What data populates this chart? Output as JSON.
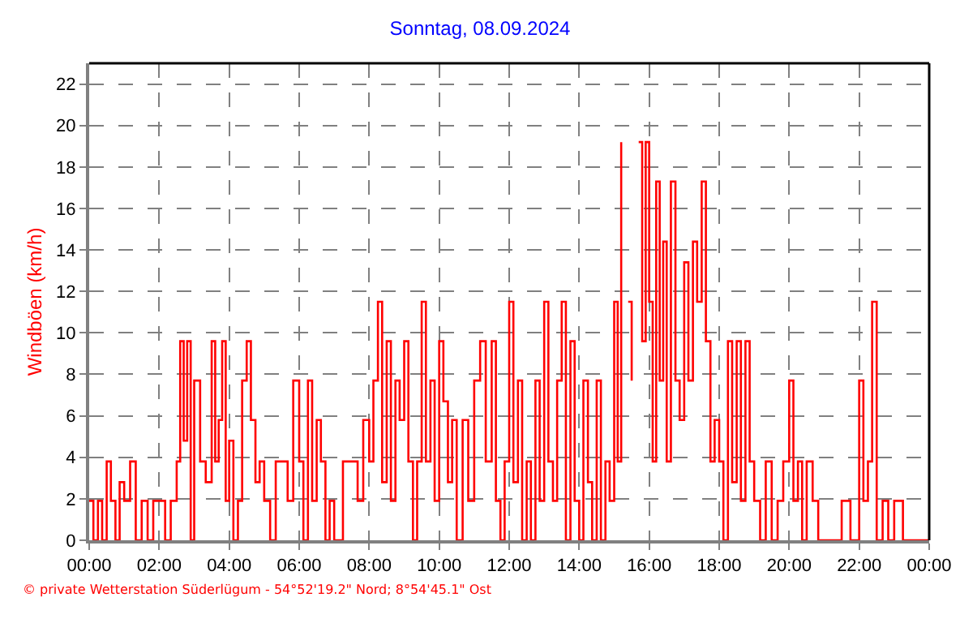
{
  "chart_data": {
    "type": "step",
    "title": "Sonntag, 08.09.2024",
    "ylabel": "Windböen (km/h)",
    "annotations": [
      "© private Wetterstation Süderlügum - 54°52'19.2\" Nord; 8°54'45.1\" Ost"
    ],
    "x": [
      0,
      0.12,
      0.25,
      0.37,
      0.5,
      0.62,
      0.75,
      0.87,
      1,
      1.17,
      1.33,
      1.5,
      1.67,
      1.83,
      2,
      2.17,
      2.33,
      2.5,
      2.6,
      2.7,
      2.8,
      2.9,
      3,
      3.17,
      3.33,
      3.5,
      3.6,
      3.7,
      3.8,
      3.9,
      4,
      4.12,
      4.25,
      4.37,
      4.5,
      4.62,
      4.75,
      4.87,
      5,
      5.17,
      5.33,
      5.5,
      5.67,
      5.83,
      6,
      6.12,
      6.25,
      6.37,
      6.5,
      6.62,
      6.75,
      6.87,
      7,
      7.25,
      7.5,
      7.67,
      7.83,
      8,
      8.12,
      8.25,
      8.37,
      8.5,
      8.62,
      8.75,
      8.87,
      9,
      9.12,
      9.25,
      9.37,
      9.5,
      9.62,
      9.75,
      9.87,
      10,
      10.12,
      10.25,
      10.37,
      10.5,
      10.67,
      10.83,
      11,
      11.17,
      11.33,
      11.5,
      11.62,
      11.75,
      11.87,
      12,
      12.12,
      12.25,
      12.37,
      12.5,
      12.62,
      12.75,
      12.87,
      13,
      13.12,
      13.25,
      13.37,
      13.5,
      13.62,
      13.75,
      13.87,
      14,
      14.12,
      14.25,
      14.37,
      14.5,
      14.62,
      14.75,
      14.87,
      15,
      15.1,
      15.2,
      15.3,
      15.4,
      15.5,
      15.6,
      15.7,
      15.8,
      15.9,
      16,
      16.1,
      16.2,
      16.3,
      16.4,
      16.5,
      16.62,
      16.75,
      16.87,
      17,
      17.12,
      17.25,
      17.37,
      17.5,
      17.62,
      17.75,
      17.87,
      18,
      18.12,
      18.25,
      18.37,
      18.5,
      18.62,
      18.75,
      18.87,
      19,
      19.17,
      19.33,
      19.5,
      19.67,
      19.83,
      20,
      20.12,
      20.25,
      20.37,
      20.5,
      20.67,
      20.83,
      21,
      21.5,
      21.75,
      22,
      22.12,
      22.25,
      22.37,
      22.5,
      22.67,
      22.83,
      23,
      23.25,
      24
    ],
    "series": [
      {
        "color": "#ff0000",
        "values": [
          1.9,
          0,
          1.9,
          0,
          3.8,
          1.9,
          0,
          2.8,
          1.9,
          3.8,
          0,
          1.9,
          0,
          1.9,
          1.9,
          0,
          1.9,
          3.8,
          9.6,
          4.8,
          9.6,
          0,
          7.7,
          3.8,
          2.8,
          9.6,
          3.8,
          5.8,
          9.6,
          1.9,
          4.8,
          0,
          1.9,
          7.7,
          9.6,
          5.8,
          2.8,
          3.8,
          1.9,
          0,
          3.8,
          3.8,
          1.9,
          7.7,
          3.8,
          0,
          7.7,
          1.9,
          5.8,
          3.8,
          0,
          1.9,
          0,
          3.8,
          3.8,
          1.9,
          5.8,
          3.8,
          7.7,
          11.5,
          2.8,
          9.6,
          1.9,
          7.7,
          5.8,
          9.6,
          3.8,
          0,
          3.8,
          11.5,
          3.8,
          7.7,
          1.9,
          9.6,
          6.7,
          2.8,
          5.8,
          0,
          5.8,
          1.9,
          7.7,
          9.6,
          3.8,
          9.6,
          1.9,
          0,
          3.8,
          11.5,
          2.8,
          7.7,
          0,
          3.8,
          0,
          7.7,
          1.9,
          11.5,
          3.8,
          1.9,
          7.7,
          11.5,
          0,
          9.6,
          1.9,
          0,
          7.7,
          2.8,
          0,
          7.7,
          0,
          3.8,
          1.9,
          11.5,
          3.8,
          19.2,
          null,
          11.5,
          7.7,
          null,
          19.2,
          9.6,
          19.2,
          11.5,
          3.8,
          17.3,
          7.7,
          14.4,
          3.8,
          17.3,
          7.7,
          5.8,
          13.4,
          7.7,
          14.4,
          11.5,
          17.3,
          9.6,
          3.8,
          5.8,
          3.8,
          0,
          9.6,
          2.8,
          9.6,
          1.9,
          9.6,
          3.8,
          1.9,
          0,
          3.8,
          0,
          1.9,
          3.8,
          7.7,
          1.9,
          3.8,
          0,
          3.8,
          1.9,
          0,
          0,
          1.9,
          0,
          7.7,
          1.9,
          3.8,
          11.5,
          0,
          1.9,
          0,
          1.9,
          0,
          0
        ]
      }
    ],
    "xlim": [
      0,
      24
    ],
    "ylim": [
      0,
      23
    ],
    "xticks": [
      {
        "value": 0,
        "label": "00:00"
      },
      {
        "value": 2,
        "label": "02:00"
      },
      {
        "value": 4,
        "label": "04:00"
      },
      {
        "value": 6,
        "label": "06:00"
      },
      {
        "value": 8,
        "label": "08:00"
      },
      {
        "value": 10,
        "label": "10:00"
      },
      {
        "value": 12,
        "label": "12:00"
      },
      {
        "value": 14,
        "label": "14:00"
      },
      {
        "value": 16,
        "label": "16:00"
      },
      {
        "value": 18,
        "label": "18:00"
      },
      {
        "value": 20,
        "label": "20:00"
      },
      {
        "value": 22,
        "label": "22:00"
      },
      {
        "value": 24,
        "label": "00:00"
      }
    ],
    "yticks": [
      0,
      2,
      4,
      6,
      8,
      10,
      12,
      14,
      16,
      18,
      20,
      22
    ],
    "grid": true
  }
}
